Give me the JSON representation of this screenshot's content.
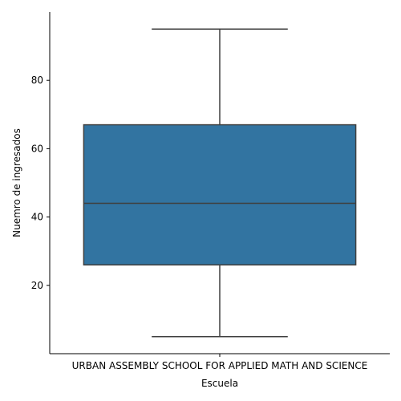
{
  "chart_data": {
    "type": "box",
    "xlabel": "Escuela",
    "ylabel": "Nuemro de ingresados",
    "categories": [
      "URBAN ASSEMBLY SCHOOL FOR APPLIED MATH AND SCIENCE"
    ],
    "boxes": [
      {
        "category": "URBAN ASSEMBLY SCHOOL FOR APPLIED MATH AND SCIENCE",
        "whisker_low": 5,
        "q1": 26,
        "median": 44,
        "q3": 67,
        "whisker_high": 95
      }
    ],
    "ylim": [
      0,
      100
    ],
    "yticks": [
      20,
      40,
      60,
      80
    ],
    "grid": false,
    "legend": "none",
    "box_color": "#3274a1",
    "line_color": "#3f3f3f"
  }
}
